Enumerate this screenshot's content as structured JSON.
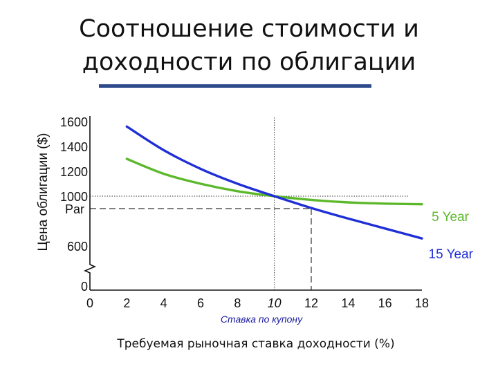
{
  "title_line1": "Соотношение стоимости и",
  "title_line2": "доходности по облигации",
  "accent_color": "#2e4a8c",
  "chart_data": {
    "type": "line",
    "title": "Соотношение стоимости и доходности по облигации",
    "xlabel": "Требуемая рыночная ставка доходности (%)",
    "ylabel": "Цена облигации ($)",
    "x_ticks": [
      "0",
      "2",
      "4",
      "6",
      "8",
      "10",
      "12",
      "14",
      "16",
      "18"
    ],
    "y_ticks": [
      {
        "value": 1600,
        "label": "1600"
      },
      {
        "value": 1400,
        "label": "1400"
      },
      {
        "value": 1200,
        "label": "1200"
      },
      {
        "value": 1000,
        "label": "1000"
      },
      {
        "value": 900,
        "label": "Par"
      },
      {
        "value": 600,
        "label": "600"
      },
      {
        "value": 0,
        "label": "0"
      }
    ],
    "xlim": [
      0,
      18
    ],
    "ylim_upper_segment": [
      600,
      1600
    ],
    "axis_break": "y between 0 and 600",
    "coupon_rate": 10,
    "coupon_label": "Ставка по купону",
    "coupon_tick_color": "#1a1aa0",
    "reference_lines": [
      {
        "axis": "x",
        "value": 10,
        "style": "dotted"
      },
      {
        "axis": "y",
        "value": 1000,
        "style": "dotted"
      },
      {
        "axis": "x",
        "value": 12,
        "style": "dashed"
      },
      {
        "axis": "y",
        "value": 900,
        "style": "dashed"
      }
    ],
    "series": [
      {
        "name": "5 Year",
        "color": "#5cb82b",
        "x": [
          2,
          4,
          6,
          8,
          10,
          12,
          14,
          16,
          18
        ],
        "y": [
          1300,
          1180,
          1100,
          1040,
          1000,
          970,
          950,
          940,
          935
        ]
      },
      {
        "name": "15 Year",
        "color": "#1f2fd6",
        "x": [
          2,
          4,
          6,
          8,
          10,
          12,
          14,
          16,
          18
        ],
        "y": [
          1560,
          1370,
          1220,
          1100,
          1000,
          905,
          820,
          740,
          660
        ]
      }
    ]
  }
}
